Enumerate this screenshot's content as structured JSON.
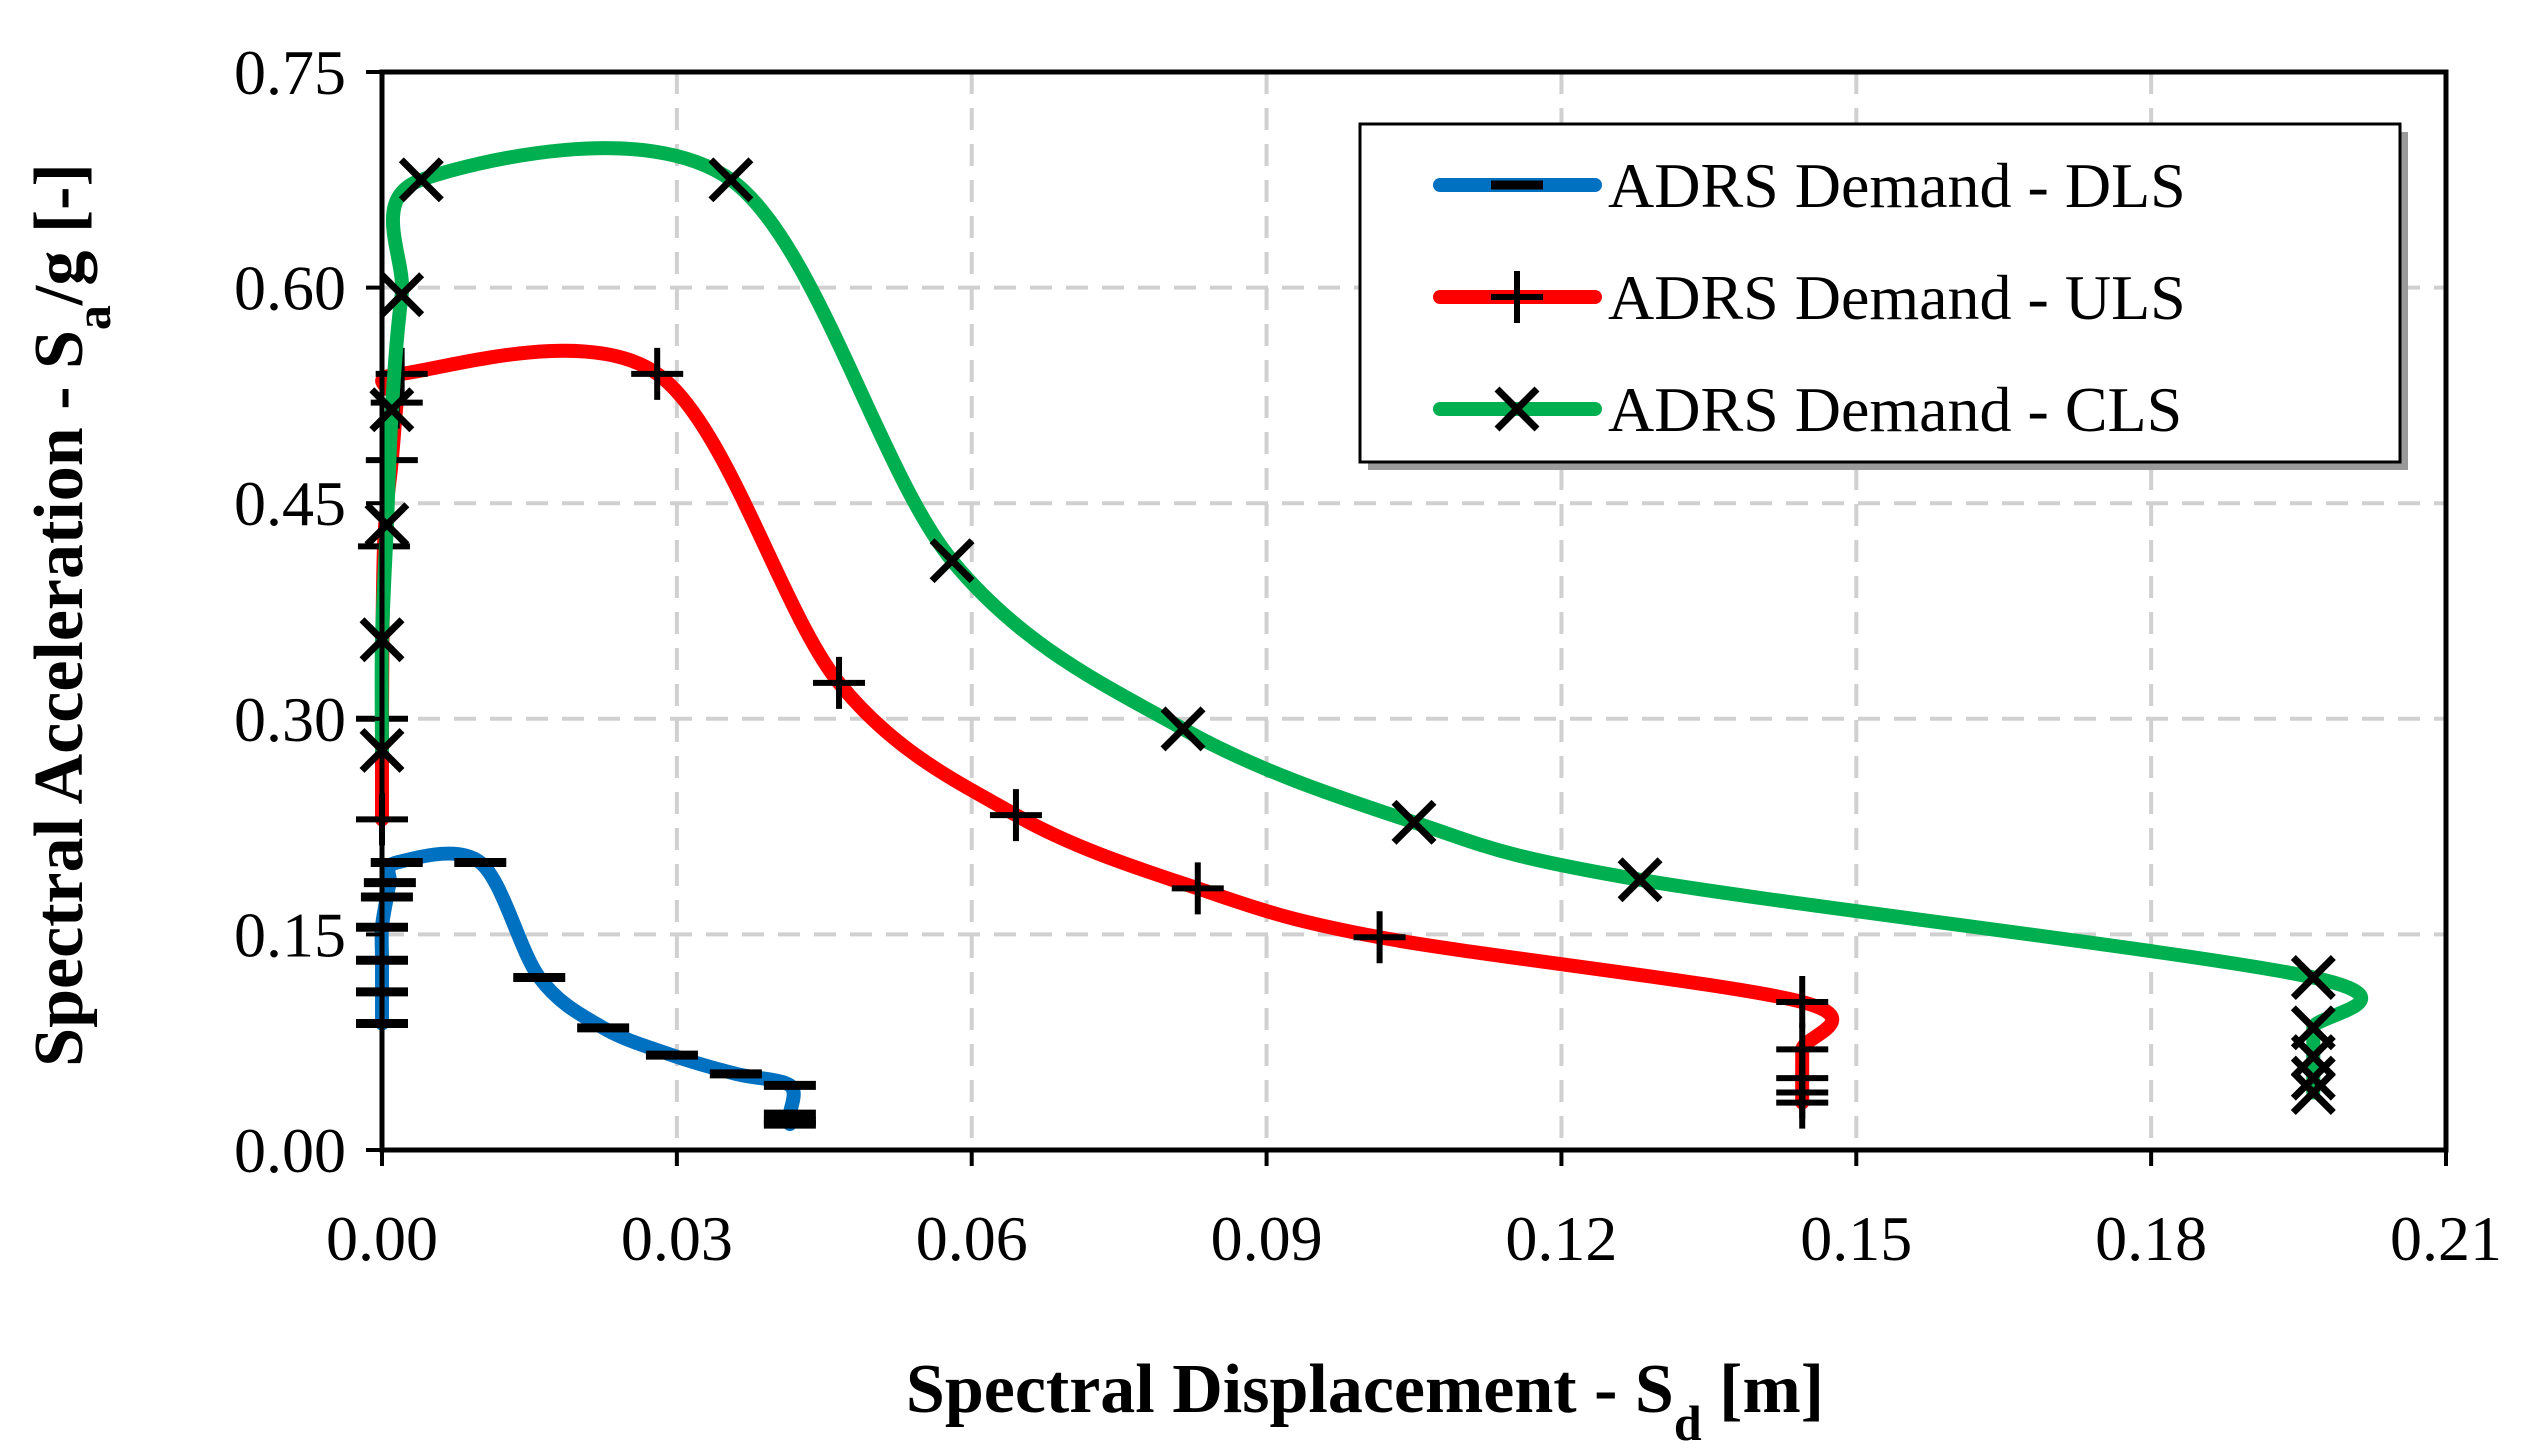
{
  "chart_data": {
    "type": "line",
    "xlabel": {
      "main": "Spectral Displacement - S",
      "sub": "d",
      "tail": " [m]"
    },
    "ylabel": {
      "main": "Spectral Acceleration - S",
      "sub": "a",
      "tail": "/g [-]"
    },
    "xlim": [
      0,
      0.21
    ],
    "ylim": [
      0,
      0.75
    ],
    "x_ticks": [
      0,
      0.03,
      0.06,
      0.09,
      0.12,
      0.15,
      0.18,
      0.21
    ],
    "x_tick_labels": [
      "0.00",
      "0.03",
      "0.06",
      "0.09",
      "0.12",
      "0.15",
      "0.18",
      "0.21"
    ],
    "y_ticks": [
      0,
      0.15,
      0.3,
      0.45,
      0.6,
      0.75
    ],
    "y_tick_labels": [
      "0.00",
      "0.15",
      "0.30",
      "0.45",
      "0.60",
      "0.75"
    ],
    "grid": true,
    "legend_position": "top-right",
    "series": [
      {
        "name": "ADRS Demand - DLS",
        "color": "#0070c0",
        "marker": "dash",
        "points": [
          [
            0.0,
            0.088
          ],
          [
            0.0,
            0.11
          ],
          [
            0.0,
            0.132
          ],
          [
            0.0,
            0.155
          ],
          [
            0.0005,
            0.176
          ],
          [
            0.0008,
            0.186
          ],
          [
            0.0015,
            0.2
          ],
          [
            0.01,
            0.2
          ],
          [
            0.016,
            0.12
          ],
          [
            0.0225,
            0.085
          ],
          [
            0.0295,
            0.066
          ],
          [
            0.036,
            0.053
          ],
          [
            0.0415,
            0.045
          ],
          [
            0.0415,
            0.025
          ],
          [
            0.0415,
            0.02
          ],
          [
            0.0415,
            0.018
          ]
        ]
      },
      {
        "name": "ADRS Demand - ULS",
        "color": "#ff0000",
        "marker": "plus",
        "points": [
          [
            0.0,
            0.23
          ],
          [
            0.0,
            0.3
          ],
          [
            0.0002,
            0.42
          ],
          [
            0.001,
            0.48
          ],
          [
            0.0015,
            0.52
          ],
          [
            0.002,
            0.54
          ],
          [
            0.028,
            0.54
          ],
          [
            0.0465,
            0.325
          ],
          [
            0.0645,
            0.233
          ],
          [
            0.083,
            0.182
          ],
          [
            0.1015,
            0.148
          ],
          [
            0.1445,
            0.103
          ],
          [
            0.1445,
            0.07
          ],
          [
            0.1445,
            0.05
          ],
          [
            0.1445,
            0.04
          ],
          [
            0.1445,
            0.033
          ]
        ]
      },
      {
        "name": "ADRS Demand - CLS",
        "color": "#00b050",
        "marker": "x",
        "points": [
          [
            0.0,
            0.278
          ],
          [
            0.0,
            0.355
          ],
          [
            0.0005,
            0.435
          ],
          [
            0.001,
            0.515
          ],
          [
            0.002,
            0.595
          ],
          [
            0.004,
            0.675
          ],
          [
            0.0355,
            0.675
          ],
          [
            0.058,
            0.41
          ],
          [
            0.0815,
            0.293
          ],
          [
            0.105,
            0.228
          ],
          [
            0.128,
            0.188
          ],
          [
            0.1965,
            0.12
          ],
          [
            0.1965,
            0.085
          ],
          [
            0.1965,
            0.065
          ],
          [
            0.1965,
            0.05
          ],
          [
            0.1965,
            0.04
          ]
        ]
      }
    ]
  }
}
